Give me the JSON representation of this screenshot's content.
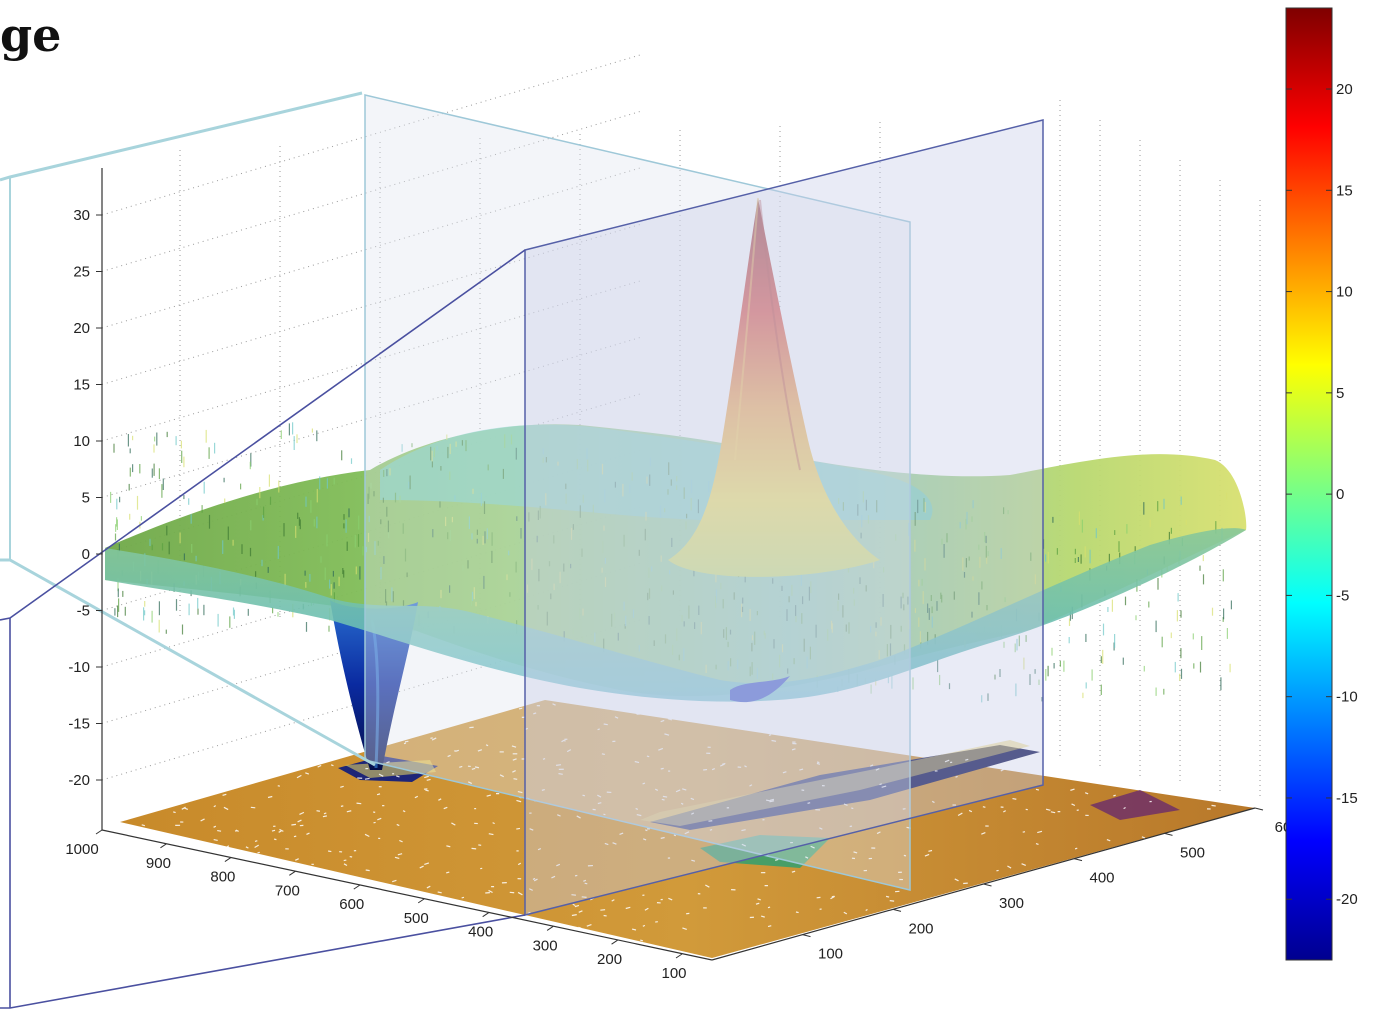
{
  "title": "ge",
  "chart_data": {
    "type": "surface",
    "description_surface": "noisy 3D surface with one positive peak and one negative pit, with a projected contour map on the base",
    "z_ticks": [
      "-20",
      "-15",
      "-10",
      "-5",
      "0",
      "5",
      "10",
      "15",
      "20",
      "25",
      "30"
    ],
    "x_ticks": [
      "1000",
      "900",
      "800",
      "700",
      "600",
      "500",
      "400",
      "300",
      "200",
      "100"
    ],
    "y_ticks": [
      "100",
      "200",
      "300",
      "400",
      "500",
      "60"
    ],
    "zlim": [
      -20,
      30
    ],
    "xlim": [
      0,
      1000
    ],
    "ylim": [
      0,
      600
    ],
    "baseline_level": 0,
    "features": [
      {
        "name": "peak",
        "x": 470,
        "y": 300,
        "z": 32
      },
      {
        "name": "pit",
        "x": 900,
        "y": 460,
        "z": -21
      }
    ],
    "colorbar": {
      "ticks": [
        "20",
        "15",
        "10",
        "5",
        "0",
        "-5",
        "-10",
        "-15",
        "-20"
      ],
      "range": [
        -23,
        24
      ],
      "colormap": "jet"
    },
    "grid": true
  }
}
